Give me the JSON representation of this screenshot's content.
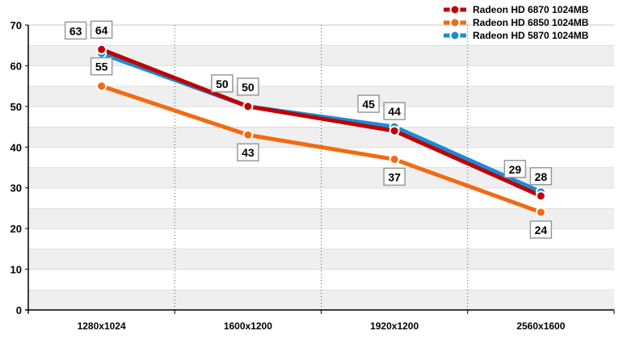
{
  "chart_data": {
    "type": "line",
    "title": "",
    "xlabel": "",
    "ylabel": "",
    "categories": [
      "1280x1024",
      "1600x1200",
      "1920x1200",
      "2560x1600"
    ],
    "ylim": [
      0,
      70
    ],
    "yticks": [
      0,
      10,
      20,
      30,
      40,
      50,
      60,
      70
    ],
    "grid": true,
    "legend_position": "top-right",
    "series": [
      {
        "name": "Radeon HD 5870 1024MB",
        "color": "#1a8ad4",
        "values": [
          63,
          50,
          45,
          29
        ],
        "labels": [
          "63",
          "50",
          "45",
          "29"
        ]
      },
      {
        "name": "Radeon HD 6850 1024MB",
        "color": "#f26a12",
        "values": [
          55,
          43,
          37,
          24
        ],
        "labels": [
          "55",
          "43",
          "37",
          "24"
        ]
      },
      {
        "name": "Radeon HD 6870 1024MB",
        "color": "#c00000",
        "values": [
          64,
          50,
          44,
          28
        ],
        "labels": [
          "64",
          "50",
          "44",
          "28"
        ]
      }
    ],
    "legend_order": [
      "Radeon HD 6870 1024MB",
      "Radeon HD 6850 1024MB",
      "Radeon HD 5870 1024MB"
    ]
  }
}
